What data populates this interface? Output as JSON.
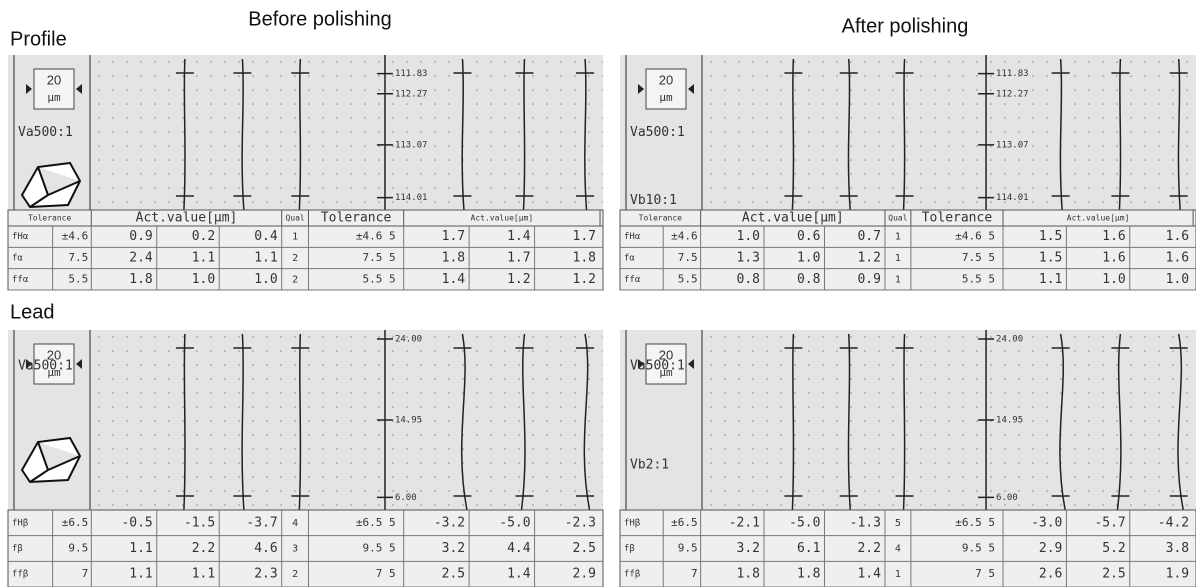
{
  "headers": {
    "before": "Before polishing",
    "after": "After polishing"
  },
  "sections": {
    "profile": "Profile",
    "lead": "Lead"
  },
  "panels": [
    {
      "scale_value": "20",
      "scale_unit": "µm",
      "magnifications": [
        "Va500:1"
      ],
      "axis_labels": [
        "111.83",
        "112.27",
        "113.07",
        "114.01"
      ],
      "columns": [
        "Tolerance",
        "Act.value[µm]",
        "Qual",
        "Tolerance",
        "Act.value[µm]"
      ],
      "rows": [
        {
          "name": "fHα",
          "tolerance": "±4.6",
          "values": [
            "0.9",
            "0.2",
            "0.4"
          ],
          "qual": "1",
          "tolerance2": "±4.6 5",
          "values2": [
            "1.7",
            "1.4",
            "1.7"
          ]
        },
        {
          "name": "fα",
          "tolerance": "7.5",
          "values": [
            "2.4",
            "1.1",
            "1.1"
          ],
          "qual": "2",
          "tolerance2": "7.5 5",
          "values2": [
            "1.8",
            "1.7",
            "1.8"
          ]
        },
        {
          "name": "ffα",
          "tolerance": "5.5",
          "values": [
            "1.8",
            "1.0",
            "1.0"
          ],
          "qual": "2",
          "tolerance2": "5.5 5",
          "values2": [
            "1.4",
            "1.2",
            "1.2"
          ]
        }
      ]
    },
    {
      "scale_value": "20",
      "scale_unit": "µm",
      "magnifications": [
        "Va500:1",
        "Vb10:1"
      ],
      "axis_labels": [
        "111.83",
        "112.27",
        "113.07",
        "114.01"
      ],
      "columns": [
        "Tolerance",
        "Act.value[µm]",
        "Qual",
        "Tolerance",
        "Act.value[µm]"
      ],
      "rows": [
        {
          "name": "fHα",
          "tolerance": "±4.6",
          "values": [
            "1.0",
            "0.6",
            "0.7"
          ],
          "qual": "1",
          "tolerance2": "±4.6 5",
          "values2": [
            "1.5",
            "1.6",
            "1.6"
          ]
        },
        {
          "name": "fα",
          "tolerance": "7.5",
          "values": [
            "1.3",
            "1.0",
            "1.2"
          ],
          "qual": "1",
          "tolerance2": "7.5 5",
          "values2": [
            "1.5",
            "1.6",
            "1.6"
          ]
        },
        {
          "name": "ffα",
          "tolerance": "5.5",
          "values": [
            "0.8",
            "0.8",
            "0.9"
          ],
          "qual": "1",
          "tolerance2": "5.5 5",
          "values2": [
            "1.1",
            "1.0",
            "1.0"
          ]
        }
      ]
    },
    {
      "scale_value": "20",
      "scale_unit": "µm",
      "magnifications": [
        "Va500:1"
      ],
      "axis_labels": [
        "24.00",
        "14.95",
        "6.00"
      ],
      "rows": [
        {
          "name": "fHβ",
          "tolerance": "±6.5",
          "values": [
            "-0.5",
            "-1.5",
            "-3.7"
          ],
          "qual": "4",
          "tolerance2": "±6.5 5",
          "values2": [
            "-3.2",
            "-5.0",
            "-2.3"
          ]
        },
        {
          "name": "fβ",
          "tolerance": "9.5",
          "values": [
            "1.1",
            "2.2",
            "4.6"
          ],
          "qual": "3",
          "tolerance2": "9.5 5",
          "values2": [
            "3.2",
            "4.4",
            "2.5"
          ]
        },
        {
          "name": "ffβ",
          "tolerance": "7",
          "values": [
            "1.1",
            "1.1",
            "2.3"
          ],
          "qual": "2",
          "tolerance2": "7 5",
          "values2": [
            "2.5",
            "1.4",
            "2.9"
          ]
        }
      ]
    },
    {
      "scale_value": "20",
      "scale_unit": "µm",
      "magnifications": [
        "Va500:1",
        "Vb2:1"
      ],
      "axis_labels": [
        "24.00",
        "14.95",
        "6.00"
      ],
      "rows": [
        {
          "name": "fHβ",
          "tolerance": "±6.5",
          "values": [
            "-2.1",
            "-5.0",
            "-1.3"
          ],
          "qual": "5",
          "tolerance2": "±6.5 5",
          "values2": [
            "-3.0",
            "-5.7",
            "-4.2"
          ]
        },
        {
          "name": "fβ",
          "tolerance": "9.5",
          "values": [
            "3.2",
            "6.1",
            "2.2"
          ],
          "qual": "4",
          "tolerance2": "9.5 5",
          "values2": [
            "2.9",
            "5.2",
            "3.8"
          ]
        },
        {
          "name": "ffβ",
          "tolerance": "7",
          "values": [
            "1.8",
            "1.8",
            "1.4"
          ],
          "qual": "1",
          "tolerance2": "7 5",
          "values2": [
            "2.6",
            "2.5",
            "1.9"
          ]
        }
      ]
    }
  ]
}
